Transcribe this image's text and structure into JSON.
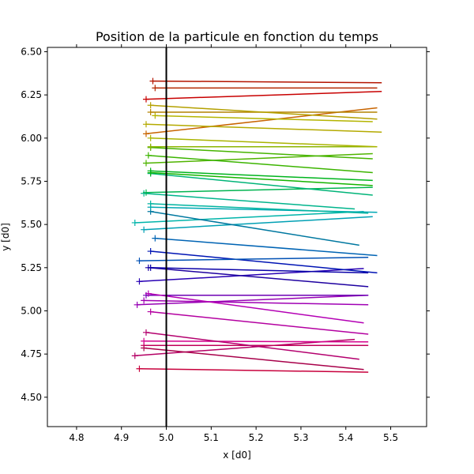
{
  "chart_data": {
    "type": "line",
    "title": "Position de la particule en fonction du temps",
    "xlabel": "x [d0]",
    "ylabel": "y [d0]",
    "xlim": [
      4.735,
      5.58
    ],
    "ylim": [
      4.33,
      6.525
    ],
    "xticks": [
      "4.8",
      "4.9",
      "5.0",
      "5.1",
      "5.2",
      "5.3",
      "5.4",
      "5.5"
    ],
    "yticks": [
      "4.50",
      "4.75",
      "5.00",
      "5.25",
      "5.50",
      "5.75",
      "6.00",
      "6.25",
      "6.50"
    ],
    "grid": false,
    "vertical_line": {
      "x": 5.0,
      "color": "#000000"
    },
    "series": [
      {
        "x": [
          4.94,
          5.45
        ],
        "y": [
          4.665,
          4.645
        ],
        "color": "#c8003c"
      },
      {
        "x": [
          4.93,
          5.42
        ],
        "y": [
          4.74,
          4.835
        ],
        "color": "#b40064"
      },
      {
        "x": [
          4.95,
          5.44
        ],
        "y": [
          4.785,
          4.66
        ],
        "color": "#a8004a"
      },
      {
        "x": [
          4.95,
          5.45
        ],
        "y": [
          4.8,
          4.8
        ],
        "color": "#c0005a"
      },
      {
        "x": [
          4.95,
          5.45
        ],
        "y": [
          4.825,
          4.82
        ],
        "color": "#d4008c"
      },
      {
        "x": [
          4.955,
          5.43
        ],
        "y": [
          4.875,
          4.72
        ],
        "color": "#b4006e"
      },
      {
        "x": [
          4.965,
          5.45
        ],
        "y": [
          4.995,
          4.865
        ],
        "color": "#b400a0"
      },
      {
        "x": [
          4.935,
          5.45
        ],
        "y": [
          5.035,
          5.09
        ],
        "color": "#9600b4"
      },
      {
        "x": [
          4.95,
          5.45
        ],
        "y": [
          5.06,
          5.035
        ],
        "color": "#a000b4"
      },
      {
        "x": [
          4.955,
          5.45
        ],
        "y": [
          5.09,
          5.09
        ],
        "color": "#6e00b4"
      },
      {
        "x": [
          4.96,
          5.44
        ],
        "y": [
          5.1,
          4.93
        ],
        "color": "#b400b4"
      },
      {
        "x": [
          4.94,
          5.44
        ],
        "y": [
          5.17,
          5.245
        ],
        "color": "#2800b4"
      },
      {
        "x": [
          4.96,
          5.45
        ],
        "y": [
          5.25,
          5.14
        ],
        "color": "#1e00a0"
      },
      {
        "x": [
          4.965,
          5.45
        ],
        "y": [
          5.25,
          5.22
        ],
        "color": "#0a00a8"
      },
      {
        "x": [
          4.965,
          5.47
        ],
        "y": [
          5.345,
          5.22
        ],
        "color": "#0014b4"
      },
      {
        "x": [
          4.94,
          5.45
        ],
        "y": [
          5.29,
          5.31
        ],
        "color": "#0050b4"
      },
      {
        "x": [
          4.975,
          5.47
        ],
        "y": [
          5.42,
          5.32
        ],
        "color": "#0064b4"
      },
      {
        "x": [
          4.95,
          5.46
        ],
        "y": [
          5.47,
          5.545
        ],
        "color": "#00a0b4"
      },
      {
        "x": [
          4.93,
          5.44
        ],
        "y": [
          5.51,
          5.575
        ],
        "color": "#00b4aa"
      },
      {
        "x": [
          4.965,
          5.43
        ],
        "y": [
          5.575,
          5.38
        ],
        "color": "#0078a0"
      },
      {
        "x": [
          4.965,
          5.47
        ],
        "y": [
          5.6,
          5.57
        ],
        "color": "#00a8b4"
      },
      {
        "x": [
          4.965,
          5.45
        ],
        "y": [
          5.62,
          5.565
        ],
        "color": "#00b4a0"
      },
      {
        "x": [
          4.95,
          5.42
        ],
        "y": [
          5.68,
          5.59
        ],
        "color": "#00b48c"
      },
      {
        "x": [
          4.955,
          5.46
        ],
        "y": [
          5.685,
          5.715
        ],
        "color": "#00b450"
      },
      {
        "x": [
          4.965,
          5.46
        ],
        "y": [
          5.795,
          5.67
        ],
        "color": "#00b478"
      },
      {
        "x": [
          4.965,
          5.46
        ],
        "y": [
          5.8,
          5.725
        ],
        "color": "#14b400"
      },
      {
        "x": [
          4.965,
          5.46
        ],
        "y": [
          5.81,
          5.755
        ],
        "color": "#00b41e"
      },
      {
        "x": [
          4.955,
          5.46
        ],
        "y": [
          5.855,
          5.91
        ],
        "color": "#50b400"
      },
      {
        "x": [
          4.96,
          5.46
        ],
        "y": [
          5.9,
          5.8
        ],
        "color": "#3cb400"
      },
      {
        "x": [
          4.965,
          5.46
        ],
        "y": [
          5.945,
          5.88
        ],
        "color": "#46b400"
      },
      {
        "x": [
          4.965,
          5.47
        ],
        "y": [
          5.95,
          5.95
        ],
        "color": "#8cb400"
      },
      {
        "x": [
          4.965,
          5.47
        ],
        "y": [
          6.0,
          5.95
        ],
        "color": "#aab400"
      },
      {
        "x": [
          4.955,
          5.47
        ],
        "y": [
          6.025,
          6.175
        ],
        "color": "#c86400"
      },
      {
        "x": [
          4.955,
          5.48
        ],
        "y": [
          6.08,
          6.035
        ],
        "color": "#b4aa00"
      },
      {
        "x": [
          4.975,
          5.46
        ],
        "y": [
          6.13,
          6.095
        ],
        "color": "#b4b400"
      },
      {
        "x": [
          4.965,
          5.47
        ],
        "y": [
          6.15,
          6.15
        ],
        "color": "#b48200"
      },
      {
        "x": [
          4.965,
          5.47
        ],
        "y": [
          6.19,
          6.11
        ],
        "color": "#b4a000"
      },
      {
        "x": [
          4.955,
          5.48
        ],
        "y": [
          6.225,
          6.27
        ],
        "color": "#c80000"
      },
      {
        "x": [
          4.975,
          5.47
        ],
        "y": [
          6.29,
          6.29
        ],
        "color": "#b42800"
      },
      {
        "x": [
          4.97,
          5.48
        ],
        "y": [
          6.33,
          6.32
        ],
        "color": "#b41400"
      }
    ]
  }
}
